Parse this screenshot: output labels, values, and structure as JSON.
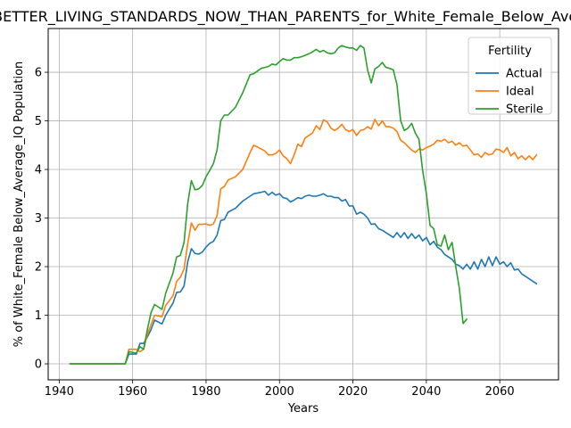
{
  "chart_data": {
    "type": "line",
    "title": "Is_BETTER_LIVING_STANDARDS_NOW_THAN_PARENTS_for_White_Female_Below_Average_IQ",
    "xlabel": "Years",
    "ylabel": "% of White_Female Below_Average_IQ Population",
    "xlim": [
      1937,
      2076
    ],
    "ylim": [
      -0.33,
      6.9
    ],
    "xticks": [
      1940,
      1960,
      1980,
      2000,
      2020,
      2040,
      2060
    ],
    "yticks": [
      0,
      1,
      2,
      3,
      4,
      5,
      6
    ],
    "grid": true,
    "legend": {
      "title": "Fertility",
      "placement": "top-right"
    },
    "series": [
      {
        "name": "Actual",
        "color": "#1f77b4",
        "x": [
          1943,
          1958,
          1959,
          1961,
          1962,
          1963,
          1964,
          1965,
          1966,
          1968,
          1969,
          1971,
          1972,
          1973,
          1974,
          1975,
          1976,
          1977,
          1978,
          1979,
          1980,
          1981,
          1982,
          1983,
          1984,
          1985,
          1986,
          1988,
          1990,
          1992,
          1993,
          1995,
          1996,
          1997,
          1998,
          1999,
          2000,
          2001,
          2002,
          2003,
          2004,
          2005,
          2006,
          2007,
          2008,
          2009,
          2010,
          2011,
          2012,
          2013,
          2014,
          2015,
          2016,
          2017,
          2018,
          2019,
          2020,
          2021,
          2022,
          2023,
          2024,
          2025,
          2026,
          2027,
          2028,
          2029,
          2030,
          2031,
          2032,
          2033,
          2034,
          2035,
          2036,
          2037,
          2038,
          2039,
          2040,
          2041,
          2042,
          2043,
          2044,
          2045,
          2046,
          2047,
          2048,
          2049,
          2050,
          2051,
          2052,
          2053,
          2054,
          2055,
          2056,
          2057,
          2058,
          2059,
          2060,
          2061,
          2062,
          2063,
          2064,
          2065,
          2066,
          2067,
          2068,
          2069,
          2070
        ],
        "values": [
          0,
          0,
          0.2,
          0.2,
          0.42,
          0.42,
          0.55,
          0.7,
          0.9,
          0.82,
          1.0,
          1.25,
          1.47,
          1.48,
          1.6,
          2.1,
          2.37,
          2.27,
          2.26,
          2.3,
          2.4,
          2.48,
          2.52,
          2.65,
          2.95,
          2.97,
          3.12,
          3.2,
          3.35,
          3.45,
          3.5,
          3.53,
          3.55,
          3.47,
          3.53,
          3.47,
          3.5,
          3.42,
          3.4,
          3.33,
          3.37,
          3.42,
          3.4,
          3.45,
          3.47,
          3.45,
          3.45,
          3.47,
          3.5,
          3.45,
          3.45,
          3.42,
          3.42,
          3.35,
          3.38,
          3.25,
          3.25,
          3.08,
          3.12,
          3.08,
          3.0,
          2.87,
          2.88,
          2.78,
          2.75,
          2.7,
          2.65,
          2.6,
          2.7,
          2.6,
          2.7,
          2.58,
          2.68,
          2.58,
          2.65,
          2.53,
          2.6,
          2.45,
          2.52,
          2.4,
          2.35,
          2.25,
          2.2,
          2.15,
          2.05,
          2.02,
          1.95,
          2.05,
          1.95,
          2.1,
          1.95,
          2.15,
          2.0,
          2.2,
          2.02,
          2.2,
          2.05,
          2.1,
          2.0,
          2.08,
          1.93,
          1.95,
          1.85,
          1.8,
          1.75,
          1.7,
          1.65
        ]
      },
      {
        "name": "Ideal",
        "color": "#ff7f0e",
        "x": [
          1943,
          1958,
          1959,
          1961,
          1962,
          1963,
          1964,
          1965,
          1966,
          1968,
          1969,
          1971,
          1972,
          1973,
          1974,
          1975,
          1976,
          1977,
          1978,
          1979,
          1980,
          1981,
          1982,
          1983,
          1984,
          1985,
          1986,
          1988,
          1990,
          1992,
          1993,
          1995,
          1996,
          1997,
          1998,
          1999,
          2000,
          2001,
          2002,
          2003,
          2004,
          2005,
          2006,
          2007,
          2008,
          2009,
          2010,
          2011,
          2012,
          2013,
          2014,
          2015,
          2016,
          2017,
          2018,
          2019,
          2020,
          2021,
          2022,
          2023,
          2024,
          2025,
          2026,
          2027,
          2028,
          2029,
          2030,
          2031,
          2032,
          2033,
          2034,
          2035,
          2036,
          2037,
          2038,
          2039,
          2040,
          2041,
          2042,
          2043,
          2044,
          2045,
          2046,
          2047,
          2048,
          2049,
          2050,
          2051,
          2052,
          2053,
          2054,
          2055,
          2056,
          2057,
          2058,
          2059,
          2060,
          2061,
          2062,
          2063,
          2064,
          2065,
          2066,
          2067,
          2068,
          2069,
          2070
        ],
        "values": [
          0,
          0,
          0.3,
          0.3,
          0.25,
          0.3,
          0.6,
          0.8,
          1.0,
          0.97,
          1.2,
          1.4,
          1.7,
          1.78,
          1.95,
          2.47,
          2.9,
          2.75,
          2.87,
          2.87,
          2.88,
          2.85,
          2.88,
          3.05,
          3.6,
          3.65,
          3.78,
          3.85,
          4.0,
          4.35,
          4.5,
          4.42,
          4.38,
          4.3,
          4.3,
          4.33,
          4.4,
          4.28,
          4.22,
          4.12,
          4.3,
          4.52,
          4.47,
          4.65,
          4.7,
          4.75,
          4.9,
          4.82,
          5.02,
          4.98,
          4.85,
          4.8,
          4.85,
          4.93,
          4.82,
          4.78,
          4.82,
          4.7,
          4.8,
          4.82,
          4.88,
          4.83,
          5.03,
          4.9,
          5.0,
          4.88,
          4.88,
          4.85,
          4.78,
          4.6,
          4.55,
          4.47,
          4.4,
          4.35,
          4.42,
          4.4,
          4.45,
          4.48,
          4.52,
          4.6,
          4.58,
          4.62,
          4.55,
          4.58,
          4.5,
          4.55,
          4.48,
          4.5,
          4.4,
          4.3,
          4.32,
          4.25,
          4.35,
          4.3,
          4.32,
          4.42,
          4.4,
          4.35,
          4.45,
          4.28,
          4.35,
          4.22,
          4.28,
          4.2,
          4.28,
          4.2,
          4.3
        ]
      },
      {
        "name": "Sterile",
        "color": "#2ca02c",
        "x": [
          1943,
          1958,
          1959,
          1961,
          1962,
          1963,
          1964,
          1965,
          1966,
          1968,
          1969,
          1971,
          1972,
          1973,
          1974,
          1975,
          1976,
          1977,
          1978,
          1979,
          1980,
          1981,
          1982,
          1983,
          1984,
          1985,
          1986,
          1988,
          1990,
          1992,
          1993,
          1995,
          1996,
          1997,
          1998,
          1999,
          2000,
          2001,
          2002,
          2003,
          2004,
          2005,
          2006,
          2007,
          2008,
          2009,
          2010,
          2011,
          2012,
          2013,
          2014,
          2015,
          2016,
          2017,
          2018,
          2019,
          2020,
          2021,
          2022,
          2023,
          2024,
          2025,
          2026,
          2027,
          2028,
          2029,
          2030,
          2031,
          2032,
          2033,
          2034,
          2035,
          2036,
          2037,
          2038,
          2039,
          2040,
          2041,
          2042,
          2043,
          2044,
          2045,
          2046,
          2047,
          2048,
          2049,
          2050,
          2051
        ],
        "values": [
          0,
          0,
          0.25,
          0.22,
          0.35,
          0.3,
          0.7,
          1.05,
          1.22,
          1.12,
          1.45,
          1.87,
          2.2,
          2.23,
          2.5,
          3.3,
          3.77,
          3.58,
          3.6,
          3.67,
          3.85,
          3.98,
          4.12,
          4.4,
          5.0,
          5.12,
          5.12,
          5.28,
          5.58,
          5.95,
          5.97,
          6.08,
          6.1,
          6.12,
          6.17,
          6.15,
          6.22,
          6.28,
          6.25,
          6.25,
          6.3,
          6.3,
          6.32,
          6.35,
          6.38,
          6.42,
          6.47,
          6.42,
          6.45,
          6.4,
          6.38,
          6.4,
          6.5,
          6.55,
          6.52,
          6.5,
          6.5,
          6.45,
          6.55,
          6.5,
          6.05,
          5.78,
          6.07,
          6.12,
          6.2,
          6.1,
          6.08,
          6.05,
          5.75,
          5.0,
          4.8,
          4.85,
          4.95,
          4.75,
          4.62,
          3.98,
          3.5,
          2.85,
          2.78,
          2.45,
          2.42,
          2.65,
          2.35,
          2.5,
          2.0,
          1.55,
          0.83,
          0.92
        ]
      }
    ]
  }
}
